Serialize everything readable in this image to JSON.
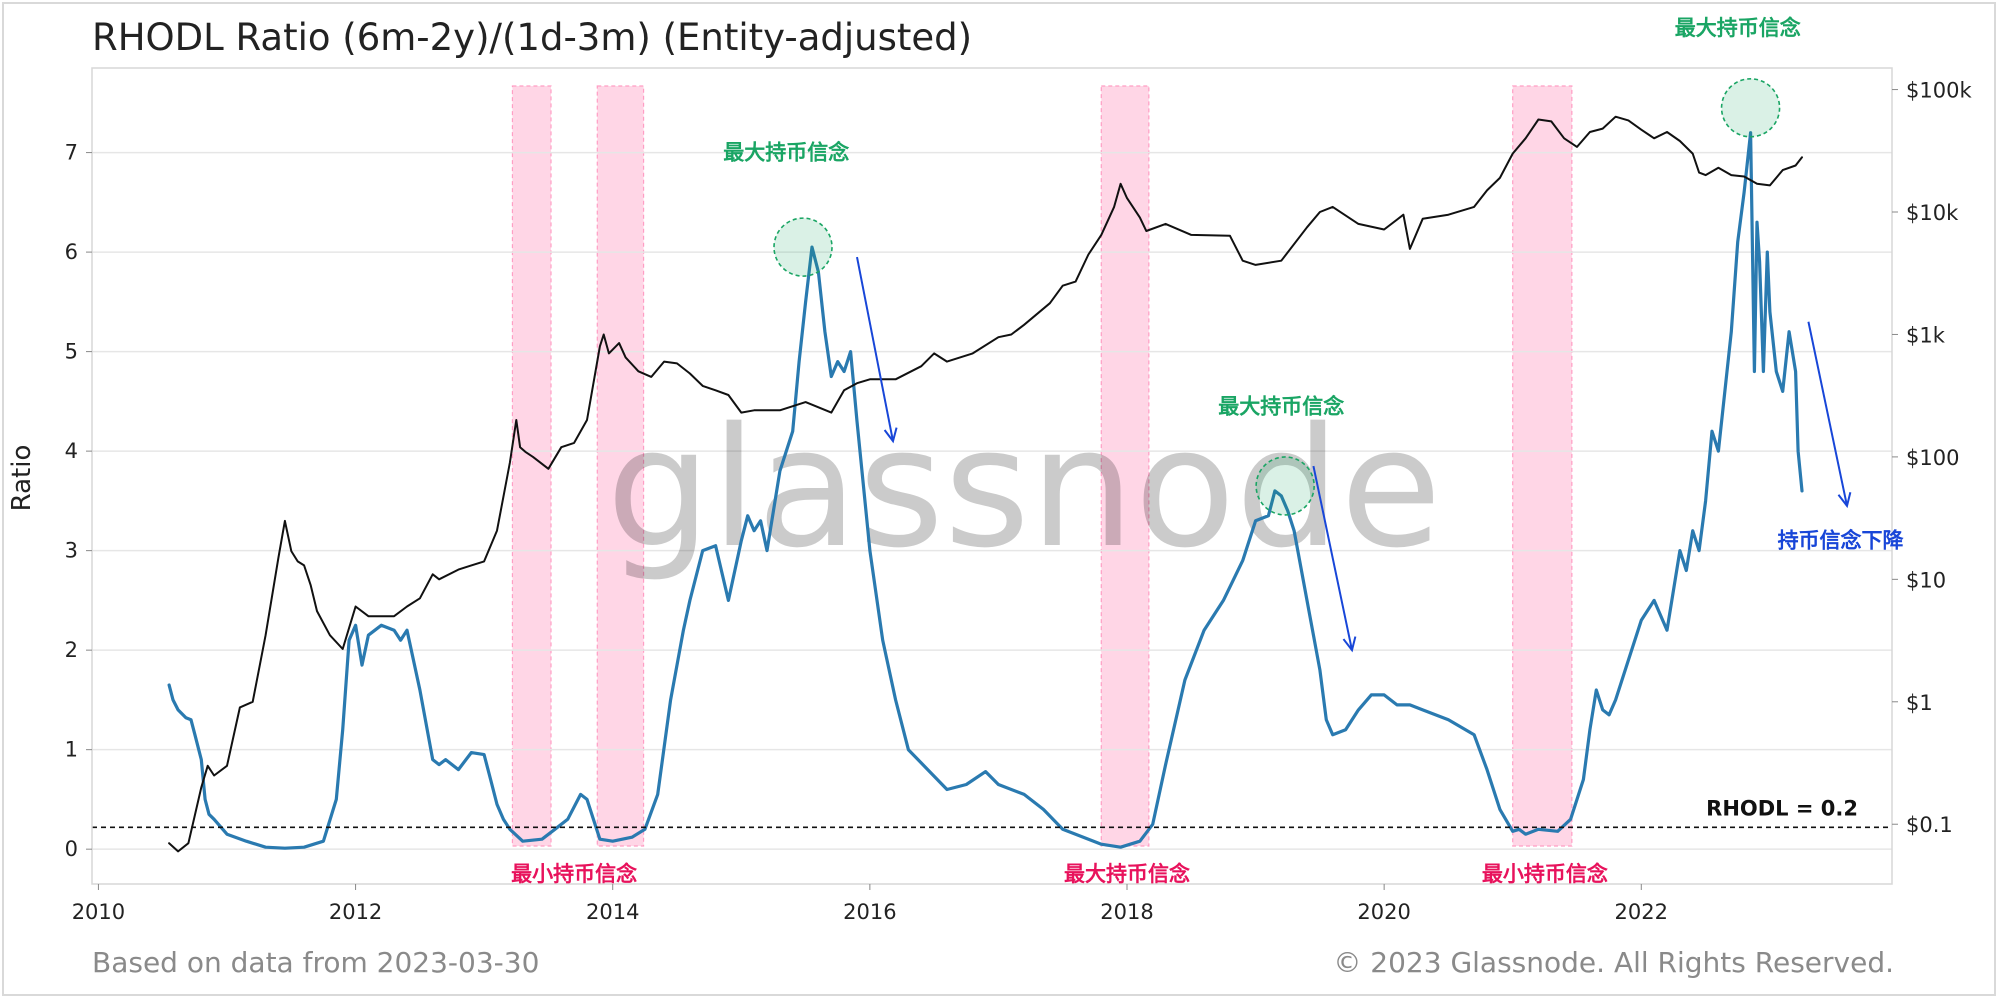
{
  "title": "RHODL Ratio (6m-2y)/(1d-3m) (Entity-adjusted)",
  "footer_left": "Based on data from 2023-03-30",
  "footer_right": "© 2023 Glassnode. All Rights Reserved.",
  "watermark": "glassnode",
  "colors": {
    "ratio": "#2a7ab0",
    "price": "#111111",
    "band": "#ff9ec4",
    "green": "#1aa564",
    "red": "#e8125c",
    "blue": "#1846d8",
    "grid": "#e6e6e6"
  },
  "chart_data": {
    "type": "line",
    "ylabel": "Ratio",
    "x_range": [
      2009.95,
      2023.95
    ],
    "x_ticks": [
      {
        "value": 2010,
        "label": "2010"
      },
      {
        "value": 2012,
        "label": "2012"
      },
      {
        "value": 2014,
        "label": "2014"
      },
      {
        "value": 2016,
        "label": "2016"
      },
      {
        "value": 2018,
        "label": "2018"
      },
      {
        "value": 2020,
        "label": "2020"
      },
      {
        "value": 2022,
        "label": "2022"
      }
    ],
    "y_left": {
      "range": [
        -0.35,
        7.85
      ],
      "ticks": [
        0,
        1,
        2,
        3,
        4,
        5,
        6,
        7
      ]
    },
    "y_right": {
      "scale": "log",
      "range": [
        0.0325,
        150000
      ],
      "ticks": [
        {
          "value": 0.1,
          "label": "$0.1"
        },
        {
          "value": 1,
          "label": "$1"
        },
        {
          "value": 10,
          "label": "$10"
        },
        {
          "value": 100,
          "label": "$100"
        },
        {
          "value": 1000,
          "label": "$1k"
        },
        {
          "value": 10000,
          "label": "$10k"
        },
        {
          "value": 100000,
          "label": "$100k"
        }
      ]
    },
    "threshold": {
      "value": 0.22,
      "label": "RHODL = 0.2"
    },
    "shaded_bands": [
      [
        2013.22,
        2013.52
      ],
      [
        2013.88,
        2014.24
      ],
      [
        2017.8,
        2018.17
      ],
      [
        2021.0,
        2021.46
      ]
    ],
    "series": [
      {
        "kind": "ratio",
        "x": [
          2010.55,
          2010.58,
          2010.62,
          2010.68,
          2010.72,
          2010.75,
          2010.8,
          2010.83,
          2010.86,
          2010.9,
          2011.0,
          2011.15,
          2011.3,
          2011.45,
          2011.6,
          2011.75,
          2011.85,
          2011.9,
          2011.95,
          2012.0,
          2012.05,
          2012.1,
          2012.15,
          2012.2,
          2012.3,
          2012.35,
          2012.4,
          2012.5,
          2012.6,
          2012.65,
          2012.7,
          2012.8,
          2012.9,
          2013.0,
          2013.05,
          2013.1,
          2013.15,
          2013.2,
          2013.3,
          2013.45,
          2013.55,
          2013.65,
          2013.75,
          2013.8,
          2013.85,
          2013.9,
          2014.0,
          2014.15,
          2014.25,
          2014.35,
          2014.45,
          2014.55,
          2014.6,
          2014.7,
          2014.8,
          2014.9,
          2015.0,
          2015.05,
          2015.1,
          2015.15,
          2015.2,
          2015.3,
          2015.4,
          2015.45,
          2015.5,
          2015.55,
          2015.6,
          2015.65,
          2015.7,
          2015.75,
          2015.8,
          2015.85,
          2015.9,
          2016.0,
          2016.1,
          2016.2,
          2016.3,
          2016.45,
          2016.6,
          2016.75,
          2016.9,
          2017.0,
          2017.2,
          2017.35,
          2017.5,
          2017.6,
          2017.8,
          2017.95,
          2018.1,
          2018.2,
          2018.3,
          2018.45,
          2018.6,
          2018.75,
          2018.9,
          2019.0,
          2019.1,
          2019.15,
          2019.2,
          2019.25,
          2019.3,
          2019.4,
          2019.5,
          2019.55,
          2019.6,
          2019.7,
          2019.8,
          2019.9,
          2020.0,
          2020.1,
          2020.2,
          2020.3,
          2020.5,
          2020.7,
          2020.8,
          2020.9,
          2021.0,
          2021.05,
          2021.1,
          2021.2,
          2021.35,
          2021.45,
          2021.55,
          2021.6,
          2021.65,
          2021.7,
          2021.75,
          2021.8,
          2021.9,
          2022.0,
          2022.1,
          2022.2,
          2022.3,
          2022.35,
          2022.4,
          2022.45,
          2022.5,
          2022.55,
          2022.6,
          2022.7,
          2022.75,
          2022.8,
          2022.85,
          2022.88,
          2022.9,
          2022.92,
          2022.95,
          2022.98,
          2023.0,
          2023.05,
          2023.1,
          2023.15,
          2023.2,
          2023.22,
          2023.25
        ],
        "y": [
          1.65,
          1.5,
          1.4,
          1.32,
          1.3,
          1.15,
          0.9,
          0.5,
          0.35,
          0.3,
          0.15,
          0.08,
          0.02,
          0.01,
          0.02,
          0.08,
          0.5,
          1.2,
          2.1,
          2.25,
          1.85,
          2.15,
          2.2,
          2.25,
          2.2,
          2.1,
          2.2,
          1.6,
          0.9,
          0.85,
          0.9,
          0.8,
          0.97,
          0.95,
          0.7,
          0.45,
          0.3,
          0.2,
          0.08,
          0.1,
          0.2,
          0.3,
          0.55,
          0.5,
          0.3,
          0.1,
          0.08,
          0.12,
          0.2,
          0.55,
          1.5,
          2.2,
          2.5,
          3.0,
          3.05,
          2.5,
          3.1,
          3.35,
          3.2,
          3.3,
          3.0,
          3.8,
          4.2,
          4.9,
          5.5,
          6.05,
          5.8,
          5.2,
          4.75,
          4.9,
          4.8,
          5.0,
          4.3,
          3.0,
          2.1,
          1.5,
          1.0,
          0.8,
          0.6,
          0.65,
          0.78,
          0.65,
          0.55,
          0.4,
          0.2,
          0.15,
          0.05,
          0.02,
          0.08,
          0.25,
          0.85,
          1.7,
          2.2,
          2.5,
          2.9,
          3.3,
          3.35,
          3.6,
          3.55,
          3.4,
          3.2,
          2.5,
          1.8,
          1.3,
          1.15,
          1.2,
          1.4,
          1.55,
          1.55,
          1.45,
          1.45,
          1.4,
          1.3,
          1.15,
          0.8,
          0.4,
          0.18,
          0.2,
          0.15,
          0.2,
          0.18,
          0.3,
          0.7,
          1.2,
          1.6,
          1.4,
          1.35,
          1.5,
          1.9,
          2.3,
          2.5,
          2.2,
          3.0,
          2.8,
          3.2,
          3.0,
          3.5,
          4.2,
          4.0,
          5.2,
          6.1,
          6.6,
          7.2,
          4.8,
          6.3,
          5.9,
          4.8,
          6.0,
          5.4,
          4.8,
          4.6,
          5.2,
          4.8,
          4.0,
          3.6
        ]
      },
      {
        "kind": "price",
        "x": [
          2010.55,
          2010.62,
          2010.7,
          2010.8,
          2010.85,
          2010.9,
          2011.0,
          2011.1,
          2011.2,
          2011.3,
          2011.4,
          2011.45,
          2011.5,
          2011.55,
          2011.6,
          2011.65,
          2011.7,
          2011.8,
          2011.9,
          2012.0,
          2012.1,
          2012.2,
          2012.3,
          2012.4,
          2012.5,
          2012.6,
          2012.65,
          2012.8,
          2012.9,
          2013.0,
          2013.1,
          2013.2,
          2013.25,
          2013.28,
          2013.32,
          2013.38,
          2013.5,
          2013.6,
          2013.7,
          2013.8,
          2013.9,
          2013.93,
          2013.97,
          2014.05,
          2014.1,
          2014.2,
          2014.3,
          2014.4,
          2014.5,
          2014.6,
          2014.7,
          2014.8,
          2014.9,
          2015.0,
          2015.1,
          2015.3,
          2015.5,
          2015.7,
          2015.8,
          2015.9,
          2016.0,
          2016.2,
          2016.4,
          2016.5,
          2016.6,
          2016.8,
          2017.0,
          2017.1,
          2017.2,
          2017.4,
          2017.5,
          2017.6,
          2017.7,
          2017.8,
          2017.9,
          2017.95,
          2018.0,
          2018.1,
          2018.15,
          2018.3,
          2018.5,
          2018.8,
          2018.9,
          2019.0,
          2019.2,
          2019.4,
          2019.5,
          2019.6,
          2019.8,
          2020.0,
          2020.15,
          2020.2,
          2020.3,
          2020.5,
          2020.7,
          2020.8,
          2020.9,
          2021.0,
          2021.1,
          2021.2,
          2021.3,
          2021.4,
          2021.5,
          2021.6,
          2021.7,
          2021.8,
          2021.9,
          2022.0,
          2022.1,
          2022.2,
          2022.3,
          2022.4,
          2022.45,
          2022.5,
          2022.6,
          2022.7,
          2022.8,
          2022.9,
          2023.0,
          2023.1,
          2023.2,
          2023.25
        ],
        "y": [
          0.07,
          0.06,
          0.07,
          0.2,
          0.3,
          0.25,
          0.3,
          0.9,
          1.0,
          3.5,
          15.0,
          30.0,
          17.0,
          14.0,
          13.0,
          9.0,
          5.5,
          3.5,
          2.7,
          6.0,
          5.0,
          5.0,
          5.0,
          6.0,
          7.0,
          11.0,
          10.0,
          12.0,
          13.0,
          14.0,
          25.0,
          90.0,
          200.0,
          120.0,
          110.0,
          100.0,
          80.0,
          120.0,
          130.0,
          200.0,
          800.0,
          1000.0,
          700.0,
          850.0,
          650.0,
          500.0,
          450.0,
          600.0,
          580.0,
          480.0,
          380.0,
          350.0,
          320.0,
          230.0,
          240.0,
          240.0,
          280.0,
          230.0,
          350.0,
          400.0,
          430.0,
          430.0,
          550.0,
          700.0,
          600.0,
          700.0,
          950.0,
          1000.0,
          1200.0,
          1800.0,
          2500.0,
          2700.0,
          4500.0,
          6500.0,
          11000.0,
          17000.0,
          13000.0,
          9000.0,
          7000.0,
          8000.0,
          6500.0,
          6400.0,
          4000.0,
          3700.0,
          4000.0,
          7500.0,
          10000.0,
          11000.0,
          8000.0,
          7200.0,
          9500.0,
          5000.0,
          8800.0,
          9500.0,
          11000.0,
          15000.0,
          19000.0,
          30000.0,
          40000.0,
          57000.0,
          55000.0,
          40000.0,
          34000.0,
          45000.0,
          48000.0,
          60000.0,
          56000.0,
          47000.0,
          40000.0,
          45000.0,
          38000.0,
          30000.0,
          21000.0,
          20000.0,
          23000.0,
          20000.0,
          19500.0,
          17000.0,
          16500.0,
          22000.0,
          24000.0,
          28000.0
        ]
      }
    ],
    "annotations": [
      {
        "text": "最大持币信念",
        "x": 2015.35,
        "y": 7.0,
        "color_key": "green",
        "anchor": "middle"
      },
      {
        "text": "最大持币信念",
        "x": 2019.2,
        "y": 4.45,
        "color_key": "green",
        "anchor": "middle"
      },
      {
        "text": "最大持币信念",
        "x": 2022.75,
        "y": 8.25,
        "color_key": "green",
        "anchor": "middle"
      },
      {
        "text": "最小持币信念",
        "x": 2013.7,
        "y": -0.25,
        "color_key": "red",
        "anchor": "middle"
      },
      {
        "text": "最大持币信念",
        "x": 2018.0,
        "y": -0.25,
        "color_key": "red",
        "anchor": "middle"
      },
      {
        "text": "最小持币信念",
        "x": 2021.25,
        "y": -0.25,
        "color_key": "red",
        "anchor": "middle"
      },
      {
        "text": "持币信念下降",
        "x": 2023.55,
        "y": 3.1,
        "color_key": "blue",
        "anchor": "middle"
      }
    ],
    "circles": [
      {
        "x": 2015.48,
        "y": 6.05
      },
      {
        "x": 2019.23,
        "y": 3.65
      },
      {
        "x": 2022.85,
        "y": 7.45
      }
    ],
    "arrows": [
      {
        "x1": 2015.9,
        "y1": 5.95,
        "x2": 2016.18,
        "y2": 4.1
      },
      {
        "x1": 2019.45,
        "y1": 3.85,
        "x2": 2019.75,
        "y2": 2.0
      },
      {
        "x1": 2023.3,
        "y1": 5.3,
        "x2": 2023.6,
        "y2": 3.45
      }
    ]
  }
}
